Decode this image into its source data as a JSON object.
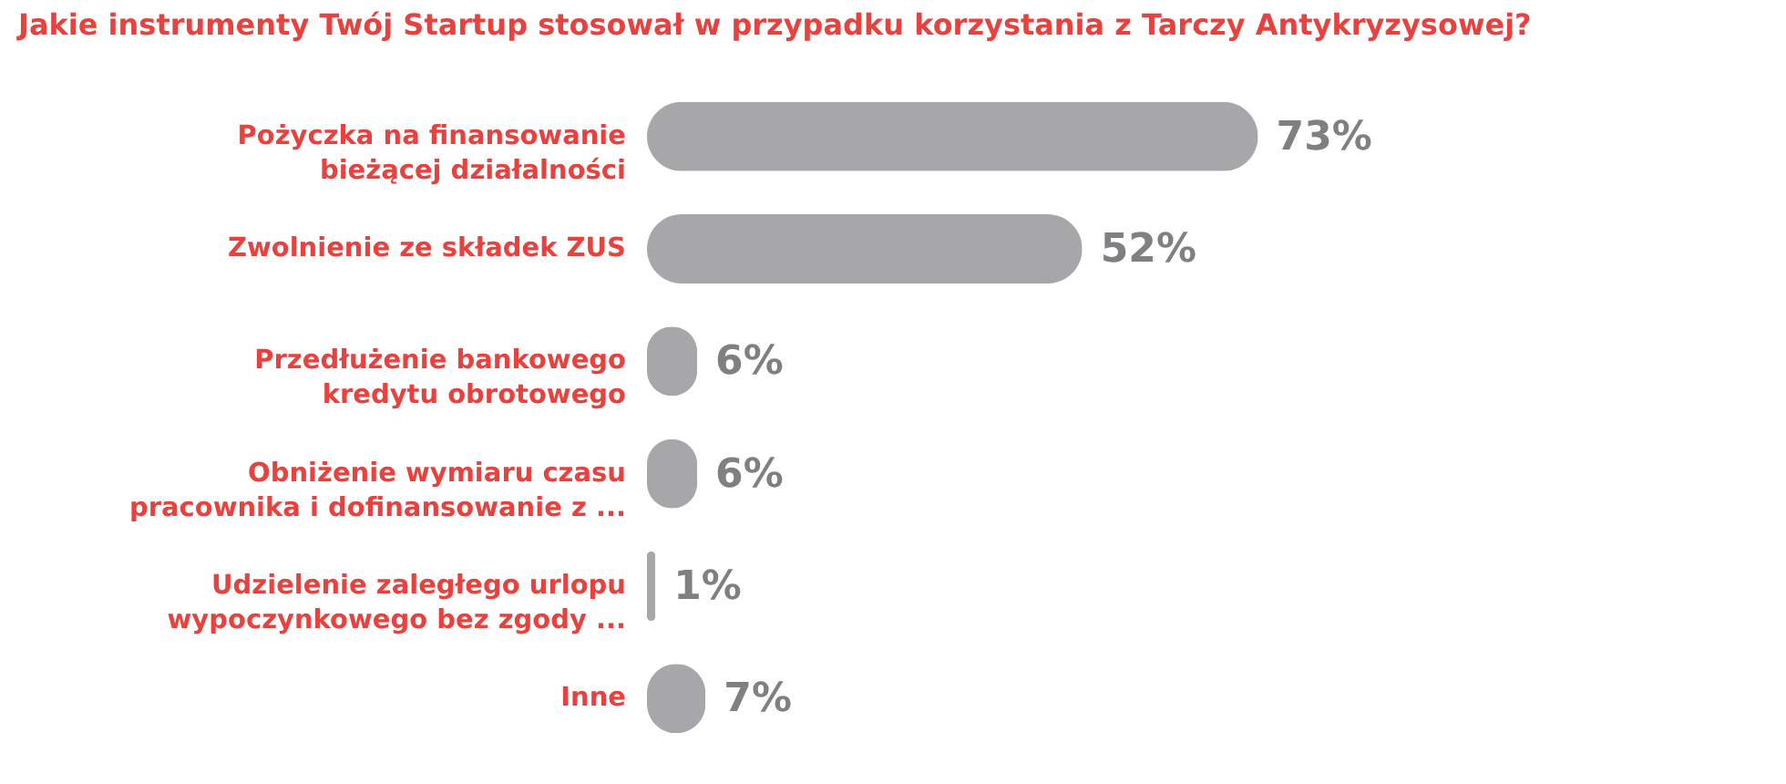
{
  "chart_data": {
    "type": "bar",
    "orientation": "horizontal",
    "relative": false,
    "title": "Jakie instrumenty Twój Startup stosował w przypadku korzystania z Tarczy Antykryzysowej?",
    "categories": [
      "Pożyczka na finansowanie bieżącej działalności",
      "Zwolnienie ze składek ZUS",
      "Przedłużenie bankowego kredytu obrotowego",
      "Obniżenie wymiaru czasu pracownika i dofinansowanie z ...",
      "Udzielenie zaległego urlopu wypoczynkowego  bez zgody ...",
      "Inne"
    ],
    "values": [
      73,
      52,
      6,
      6,
      1,
      7
    ],
    "value_labels": [
      "73%",
      "52%",
      "6%",
      "6%",
      "1%",
      "7%"
    ],
    "color": "#a7a7a9"
  }
}
